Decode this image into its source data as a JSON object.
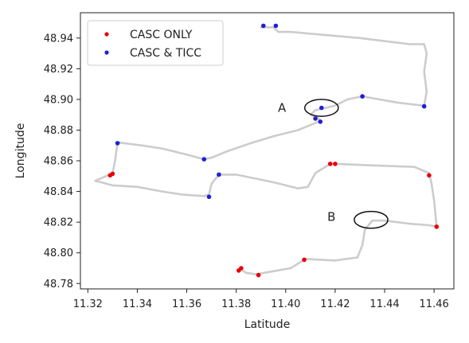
{
  "chart_data": {
    "type": "scatter",
    "title": "",
    "xlabel": "Latitude",
    "ylabel": "Longitude",
    "xlim": [
      11.317,
      11.468
    ],
    "ylim": [
      48.7765,
      48.9565
    ],
    "xticks": [
      "11.32",
      "11.34",
      "11.36",
      "11.38",
      "11.40",
      "11.42",
      "11.44",
      "11.46"
    ],
    "xtick_values": [
      11.32,
      11.34,
      11.36,
      11.38,
      11.4,
      11.42,
      11.44,
      11.46
    ],
    "yticks": [
      "48.78",
      "48.80",
      "48.82",
      "48.84",
      "48.86",
      "48.88",
      "48.90",
      "48.92",
      "48.94"
    ],
    "ytick_values": [
      48.78,
      48.8,
      48.82,
      48.84,
      48.86,
      48.88,
      48.9,
      48.92,
      48.94
    ],
    "legend_position": "top-left",
    "track": {
      "color": "#cccccc",
      "points": [
        [
          11.39,
          48.947
        ],
        [
          11.395,
          48.947
        ],
        [
          11.397,
          48.944
        ],
        [
          11.402,
          48.944
        ],
        [
          11.43,
          48.94
        ],
        [
          11.45,
          48.936
        ],
        [
          11.456,
          48.936
        ],
        [
          11.457,
          48.93
        ],
        [
          11.456,
          48.918
        ],
        [
          11.457,
          48.905
        ],
        [
          11.456,
          48.896
        ],
        [
          11.455,
          48.896
        ],
        [
          11.445,
          48.898
        ],
        [
          11.431,
          48.902
        ],
        [
          11.425,
          48.9
        ],
        [
          11.42,
          48.896
        ],
        [
          11.415,
          48.894
        ],
        [
          11.412,
          48.893
        ],
        [
          11.41,
          48.89
        ],
        [
          11.413,
          48.888
        ],
        [
          11.414,
          48.886
        ],
        [
          11.405,
          48.88
        ],
        [
          11.395,
          48.876
        ],
        [
          11.385,
          48.871
        ],
        [
          11.376,
          48.866
        ],
        [
          11.37,
          48.862
        ],
        [
          11.367,
          48.861
        ],
        [
          11.36,
          48.864
        ],
        [
          11.35,
          48.868
        ],
        [
          11.342,
          48.87
        ],
        [
          11.332,
          48.872
        ],
        [
          11.331,
          48.86
        ],
        [
          11.33,
          48.852
        ],
        [
          11.326,
          48.849
        ],
        [
          11.323,
          48.847
        ],
        [
          11.33,
          48.844
        ],
        [
          11.34,
          48.843
        ],
        [
          11.35,
          48.84
        ],
        [
          11.358,
          48.838
        ],
        [
          11.367,
          48.837
        ],
        [
          11.369,
          48.838
        ],
        [
          11.37,
          48.845
        ],
        [
          11.373,
          48.851
        ],
        [
          11.38,
          48.851
        ],
        [
          11.395,
          48.846
        ],
        [
          11.405,
          48.842
        ],
        [
          11.409,
          48.843
        ],
        [
          11.412,
          48.852
        ],
        [
          11.418,
          48.858
        ],
        [
          11.42,
          48.858
        ],
        [
          11.435,
          48.857
        ],
        [
          11.452,
          48.856
        ],
        [
          11.458,
          48.852
        ],
        [
          11.459,
          48.845
        ],
        [
          11.46,
          48.834
        ],
        [
          11.461,
          48.817
        ],
        [
          11.458,
          48.818
        ],
        [
          11.45,
          48.819
        ],
        [
          11.44,
          48.821
        ],
        [
          11.435,
          48.821
        ],
        [
          11.432,
          48.815
        ],
        [
          11.431,
          48.805
        ],
        [
          11.429,
          48.797
        ],
        [
          11.42,
          48.795
        ],
        [
          11.408,
          48.796
        ],
        [
          11.402,
          48.79
        ],
        [
          11.395,
          48.788
        ],
        [
          11.388,
          48.786
        ],
        [
          11.384,
          48.787
        ],
        [
          11.382,
          48.789
        ],
        [
          11.382,
          48.79
        ]
      ]
    },
    "series": [
      {
        "name": "CASC ONLY",
        "color": "#e8000b",
        "points": [
          [
            11.33,
            48.8515
          ],
          [
            11.329,
            48.8505
          ],
          [
            11.418,
            48.858
          ],
          [
            11.42,
            48.858
          ],
          [
            11.458,
            48.8505
          ],
          [
            11.461,
            48.817
          ],
          [
            11.4075,
            48.7955
          ],
          [
            11.382,
            48.79
          ],
          [
            11.381,
            48.7885
          ],
          [
            11.389,
            48.7855
          ]
        ]
      },
      {
        "name": "CASC & TICC",
        "color": "#1f1fd6",
        "points": [
          [
            11.391,
            48.948
          ],
          [
            11.396,
            48.948
          ],
          [
            11.4145,
            48.8945
          ],
          [
            11.412,
            48.8875
          ],
          [
            11.414,
            48.8855
          ],
          [
            11.431,
            48.902
          ],
          [
            11.456,
            48.8955
          ],
          [
            11.332,
            48.8715
          ],
          [
            11.367,
            48.861
          ],
          [
            11.373,
            48.851
          ],
          [
            11.369,
            48.8365
          ]
        ]
      }
    ],
    "annotations": [
      {
        "label": "A",
        "center": [
          11.4145,
          48.8945
        ],
        "rx_data": 0.0068,
        "ry_data": 0.0055,
        "label_pos": [
          11.3985,
          48.8945
        ]
      },
      {
        "label": "B",
        "center": [
          11.4345,
          48.8215
        ],
        "rx_data": 0.0068,
        "ry_data": 0.0055,
        "label_pos": [
          11.4185,
          48.8235
        ]
      }
    ]
  }
}
